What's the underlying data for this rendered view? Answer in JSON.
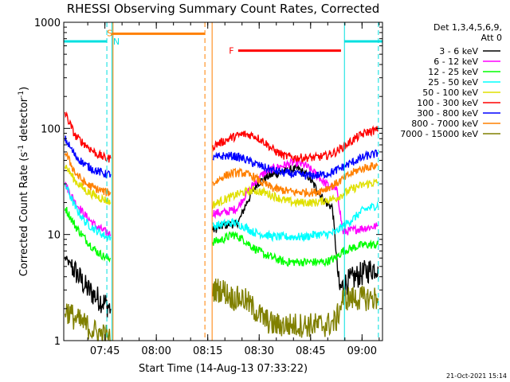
{
  "chart_data": {
    "type": "line",
    "title": "RHESSI Observing Summary Count Rates, Corrected",
    "xlabel": "Start Time (14-Aug-13 07:33:22)",
    "ylabel": "Corrected Count Rate (s⁻¹ detector⁻¹)",
    "ylabel_main": "Corrected Count Rate (s",
    "ylabel_sup1": "-1",
    "ylabel_mid": " detector",
    "ylabel_sup2": "-1",
    "ylabel_end": ")",
    "yscale": "log",
    "ylim": [
      1,
      1000
    ],
    "xlim_minutes": [
      -0.37,
      92.6
    ],
    "x_ticks": [
      {
        "label": "07:45",
        "minutes": 11.63
      },
      {
        "label": "08:00",
        "minutes": 26.63
      },
      {
        "label": "08:15",
        "minutes": 41.63
      },
      {
        "label": "08:30",
        "minutes": 56.63
      },
      {
        "label": "08:45",
        "minutes": 71.63
      },
      {
        "label": "09:00",
        "minutes": 86.63
      }
    ],
    "y_ticks": [
      {
        "label": "1",
        "value": 1
      },
      {
        "label": "10",
        "value": 10
      },
      {
        "label": "100",
        "value": 100
      },
      {
        "label": "1000",
        "value": 1000
      }
    ],
    "legend_header": [
      "Det 1,3,4,5,6,9,",
      "Att 0"
    ],
    "legend_position": "right",
    "series": [
      {
        "name": "3 - 6 keV",
        "color": "#000000",
        "segments": [
          {
            "x": [
              0,
              3,
              6,
              9,
              12,
              13.3
            ],
            "y": [
              6,
              4.5,
              3.2,
              2.6,
              2.2,
              2.0
            ]
          },
          {
            "x": [
              43.1,
              46,
              48,
              50,
              51,
              53,
              56,
              59,
              62,
              65,
              68,
              71,
              74,
              76,
              78,
              80,
              82,
              85,
              88,
              91.3
            ],
            "y": [
              11,
              12,
              12.5,
              12.5,
              14,
              20,
              30,
              35,
              38,
              40,
              42,
              35,
              25,
              20,
              18,
              3,
              3.5,
              4,
              4.5,
              5
            ]
          }
        ]
      },
      {
        "name": "6 - 12 keV",
        "color": "#ff00ff",
        "segments": [
          {
            "x": [
              0,
              3,
              6,
              9,
              12,
              13.3
            ],
            "y": [
              30,
              20,
              15,
              12,
              10.5,
              10
            ]
          },
          {
            "x": [
              43.1,
              46,
              49,
              50.5,
              52,
              55,
              58,
              61,
              64,
              67,
              70,
              72,
              74,
              76,
              78,
              79.5,
              81,
              84,
              87,
              91.3
            ],
            "y": [
              16,
              16,
              17,
              18,
              22,
              30,
              38,
              42,
              45,
              48,
              45,
              40,
              35,
              30,
              28,
              25,
              10.5,
              11,
              11.5,
              12
            ]
          }
        ]
      },
      {
        "name": "12 - 25 keV",
        "color": "#00ff00",
        "segments": [
          {
            "x": [
              0,
              3,
              6,
              9,
              12,
              13.3
            ],
            "y": [
              18,
              12,
              9,
              7,
              6,
              6
            ]
          },
          {
            "x": [
              43.1,
              46,
              49,
              52,
              55,
              58,
              61,
              64,
              67,
              70,
              73,
              76,
              79,
              81,
              84,
              87,
              91.3
            ],
            "y": [
              8.5,
              9,
              10,
              9,
              7.5,
              6.5,
              6,
              5.5,
              5.5,
              5.5,
              5.5,
              5.5,
              6,
              7,
              7.5,
              8,
              8
            ]
          }
        ]
      },
      {
        "name": "25 - 50 keV",
        "color": "#00ffff",
        "segments": [
          {
            "x": [
              0,
              3,
              6,
              9,
              12,
              13.3
            ],
            "y": [
              30,
              18,
              13,
              11,
              9.5,
              9.5
            ]
          },
          {
            "x": [
              43.1,
              46,
              49,
              52,
              55,
              58,
              61,
              64,
              67,
              70,
              73,
              76,
              79,
              81,
              84,
              87,
              91.3
            ],
            "y": [
              12,
              12.5,
              13,
              12,
              10.5,
              10,
              9.5,
              9.5,
              9.5,
              9.5,
              10,
              10,
              10.5,
              12,
              14,
              17,
              19
            ]
          }
        ]
      },
      {
        "name": "50 - 100 keV",
        "color": "#e0e000",
        "segments": [
          {
            "x": [
              0,
              3,
              6,
              9,
              12,
              13.3
            ],
            "y": [
              45,
              32,
              26,
              23,
              21,
              20
            ]
          },
          {
            "x": [
              43.1,
              46,
              49,
              52,
              55,
              58,
              61,
              64,
              67,
              70,
              73,
              76,
              79,
              82,
              85,
              88,
              91.3
            ],
            "y": [
              19,
              21,
              23,
              25,
              26,
              25,
              23,
              21,
              20,
              20,
              20,
              21,
              22,
              25,
              28,
              30,
              31
            ]
          }
        ]
      },
      {
        "name": "100 - 300 keV",
        "color": "#ff0000",
        "segments": [
          {
            "x": [
              0,
              3,
              6,
              9,
              12,
              13.3
            ],
            "y": [
              140,
              85,
              70,
              58,
              52,
              52
            ]
          },
          {
            "x": [
              43.1,
              46,
              49,
              52,
              55,
              58,
              61,
              64,
              67,
              70,
              73,
              76,
              79,
              82,
              85,
              88,
              91.3
            ],
            "y": [
              68,
              75,
              83,
              88,
              86,
              75,
              62,
              55,
              53,
              53,
              53,
              55,
              60,
              70,
              82,
              92,
              97
            ]
          }
        ]
      },
      {
        "name": "300 - 800 keV",
        "color": "#0000ff",
        "segments": [
          {
            "x": [
              0,
              3,
              6,
              9,
              12,
              13.3
            ],
            "y": [
              80,
              55,
              45,
              40,
              37,
              37
            ]
          },
          {
            "x": [
              43.1,
              46,
              49,
              52,
              55,
              58,
              61,
              64,
              67,
              70,
              73,
              76,
              79,
              82,
              85,
              88,
              91.3
            ],
            "y": [
              52,
              55,
              55,
              52,
              47,
              43,
              40,
              38,
              37,
              36,
              36,
              37,
              40,
              45,
              50,
              55,
              58
            ]
          }
        ]
      },
      {
        "name": "800 - 7000 keV",
        "color": "#ff8000",
        "segments": [
          {
            "x": [
              0,
              3,
              6,
              9,
              12,
              13.3
            ],
            "y": [
              60,
              38,
              30,
              27,
              25,
              25
            ]
          },
          {
            "x": [
              43.1,
              46,
              49,
              52,
              55,
              58,
              61,
              64,
              67,
              70,
              73,
              76,
              79,
              82,
              85,
              88,
              91.3
            ],
            "y": [
              30,
              35,
              38,
              38,
              35,
              30,
              27,
              26,
              25,
              25,
              25,
              27,
              30,
              35,
              40,
              43,
              45
            ]
          }
        ]
      },
      {
        "name": "7000 - 15000 keV",
        "color": "#808000",
        "segments": [
          {
            "x": [
              0,
              3,
              6,
              9,
              12,
              13.3
            ],
            "y": [
              2,
              1.6,
              1.4,
              1.2,
              1.1,
              1.0
            ]
          },
          {
            "x": [
              43.1,
              46,
              49,
              52,
              55,
              58,
              61,
              64,
              67,
              70,
              73,
              76,
              79,
              81,
              84,
              87,
              91.3
            ],
            "y": [
              3,
              3,
              2.5,
              2.5,
              2,
              1.6,
              1.4,
              1.4,
              1.4,
              1.4,
              1.4,
              1.4,
              1.5,
              2.5,
              2.5,
              2.5,
              2.5
            ]
          }
        ]
      }
    ],
    "flag_bars": [
      {
        "color": "#00e0e0",
        "y": 660,
        "x": [
          -0.37,
          12.2
        ]
      },
      {
        "color": "#00e0e0",
        "y": 660,
        "x": [
          81.5,
          92.6
        ]
      },
      {
        "color": "#ff8000",
        "y": 780,
        "x": [
          13.7,
          40.8
        ]
      },
      {
        "color": "#ff0000",
        "y": 540,
        "x": [
          50.5,
          80.5
        ]
      }
    ],
    "flag_labels": [
      {
        "text": "S",
        "color": "#ff8000",
        "x": 12.2,
        "y": 790
      },
      {
        "text": "N",
        "color": "#00e0e0",
        "x": 14.0,
        "y": 660
      },
      {
        "text": "F",
        "color": "#ff0000",
        "x": 47.8,
        "y": 540
      }
    ],
    "vertical_lines": [
      {
        "color": "#00e0e0",
        "style": "dashed",
        "x": 12.2
      },
      {
        "color": "#00e0e0",
        "style": "solid",
        "x": 13.7
      },
      {
        "color": "#ff8000",
        "style": "solid",
        "x": 14.0
      },
      {
        "color": "#ff8000",
        "style": "dashed",
        "x": 40.8
      },
      {
        "color": "#ff8000",
        "style": "solid",
        "x": 42.9
      },
      {
        "color": "#00e0e0",
        "style": "solid",
        "x": 81.5
      },
      {
        "color": "#00e0e0",
        "style": "dashed",
        "x": 91.4
      }
    ]
  },
  "footer": {
    "timestamp": "21-Oct-2021 15:14"
  }
}
